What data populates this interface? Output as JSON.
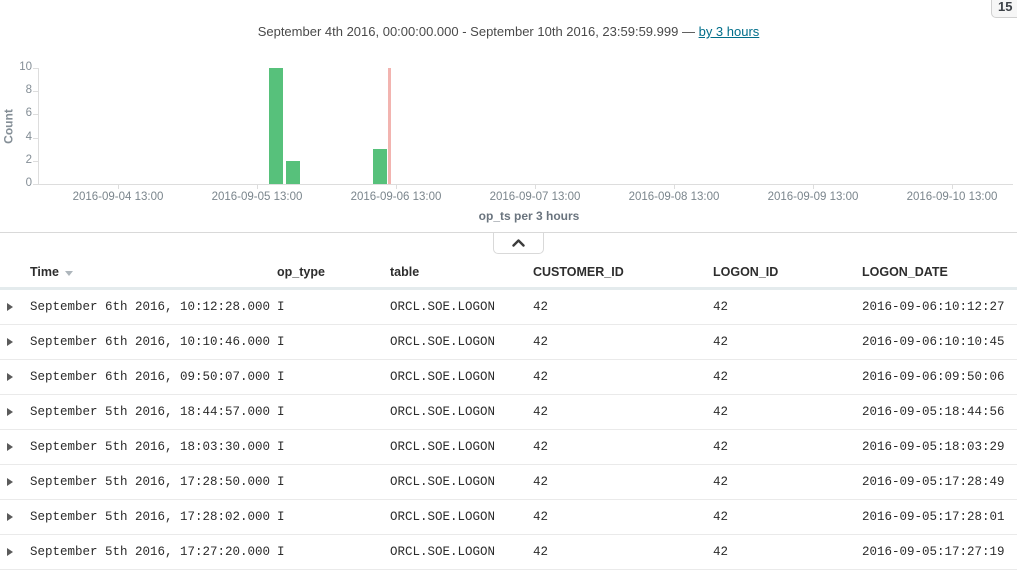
{
  "page": {
    "hits_badge": "15"
  },
  "time_header": {
    "range_text": "September 4th 2016, 00:00:00.000 - September 10th 2016, 23:59:59.999",
    "dash": "—",
    "interval_link": "by 3 hours"
  },
  "chart_data": {
    "type": "bar",
    "title": "",
    "ylabel": "Count",
    "xlabel": "op_ts per 3 hours",
    "ylim": [
      0,
      10
    ],
    "yticks": [
      0,
      2,
      4,
      6,
      8,
      10
    ],
    "grid": false,
    "x_start": "2016-09-04 00:00",
    "x_end": "2016-09-11 00:00",
    "bucket_hours": 3,
    "xticks": [
      "2016-09-04 13:00",
      "2016-09-05 13:00",
      "2016-09-06 13:00",
      "2016-09-07 13:00",
      "2016-09-08 13:00",
      "2016-09-09 13:00",
      "2016-09-10 13:00"
    ],
    "bars": [
      {
        "time": "2016-09-05 15:00",
        "value": 10
      },
      {
        "time": "2016-09-05 18:00",
        "value": 2
      },
      {
        "time": "2016-09-06 09:00",
        "value": 3
      }
    ],
    "time_marker": "2016-09-06 11:45",
    "colors": {
      "bar": "#57c17b",
      "marker": "#f2b4b0",
      "axis": "#dddddd",
      "tick_text": "#848e96"
    }
  },
  "table": {
    "headers": [
      {
        "label": "Time",
        "sorted": "desc"
      },
      {
        "label": "op_type"
      },
      {
        "label": "table"
      },
      {
        "label": "CUSTOMER_ID"
      },
      {
        "label": "LOGON_ID"
      },
      {
        "label": "LOGON_DATE"
      }
    ],
    "rows": [
      {
        "time": "September 6th 2016, 10:12:28.000",
        "op_type": "I",
        "table": "ORCL.SOE.LOGON",
        "customer_id": "42",
        "logon_id": "42",
        "logon_date": "2016-09-06:10:12:27"
      },
      {
        "time": "September 6th 2016, 10:10:46.000",
        "op_type": "I",
        "table": "ORCL.SOE.LOGON",
        "customer_id": "42",
        "logon_id": "42",
        "logon_date": "2016-09-06:10:10:45"
      },
      {
        "time": "September 6th 2016, 09:50:07.000",
        "op_type": "I",
        "table": "ORCL.SOE.LOGON",
        "customer_id": "42",
        "logon_id": "42",
        "logon_date": "2016-09-06:09:50:06"
      },
      {
        "time": "September 5th 2016, 18:44:57.000",
        "op_type": "I",
        "table": "ORCL.SOE.LOGON",
        "customer_id": "42",
        "logon_id": "42",
        "logon_date": "2016-09-05:18:44:56"
      },
      {
        "time": "September 5th 2016, 18:03:30.000",
        "op_type": "I",
        "table": "ORCL.SOE.LOGON",
        "customer_id": "42",
        "logon_id": "42",
        "logon_date": "2016-09-05:18:03:29"
      },
      {
        "time": "September 5th 2016, 17:28:50.000",
        "op_type": "I",
        "table": "ORCL.SOE.LOGON",
        "customer_id": "42",
        "logon_id": "42",
        "logon_date": "2016-09-05:17:28:49"
      },
      {
        "time": "September 5th 2016, 17:28:02.000",
        "op_type": "I",
        "table": "ORCL.SOE.LOGON",
        "customer_id": "42",
        "logon_id": "42",
        "logon_date": "2016-09-05:17:28:01"
      },
      {
        "time": "September 5th 2016, 17:27:20.000",
        "op_type": "I",
        "table": "ORCL.SOE.LOGON",
        "customer_id": "42",
        "logon_id": "42",
        "logon_date": "2016-09-05:17:27:19"
      }
    ]
  }
}
